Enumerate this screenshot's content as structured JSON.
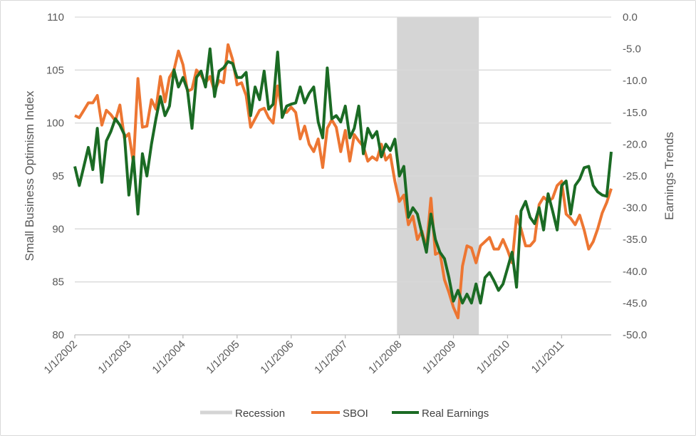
{
  "chart_data": {
    "type": "line",
    "title": "",
    "y_left": {
      "label": "Small Business Optimism Index",
      "range": [
        80,
        110
      ],
      "step": 5,
      "ticks": [
        "80",
        "85",
        "90",
        "95",
        "100",
        "105",
        "110"
      ]
    },
    "y_right": {
      "label": "Earnings Trends",
      "range": [
        -50,
        0
      ],
      "step": 5,
      "ticks": [
        "-50.0",
        "-45.0",
        "-40.0",
        "-35.0",
        "-30.0",
        "-25.0",
        "-20.0",
        "-15.0",
        "-10.0",
        "-5.0",
        "0.0"
      ]
    },
    "x": {
      "start": "2002-01",
      "end": "2011-12",
      "frequency": "monthly",
      "tick_labels": [
        "1/1/2002",
        "1/1/2003",
        "1/1/2004",
        "1/1/2005",
        "1/1/2006",
        "1/1/2007",
        "1/1/2008",
        "1/1/2009",
        "1/1/2010",
        "1/1/2011"
      ]
    },
    "grid": "horizontal",
    "legend": {
      "position": "bottom",
      "entries": [
        "Recession",
        "SBOI",
        "Real Earnings"
      ]
    },
    "recession": {
      "start": "2007-12",
      "end": "2009-06",
      "color": "#d5d5d5"
    },
    "series": [
      {
        "name": "SBOI",
        "axis": "left",
        "color": "#ed7632",
        "values": [
          100.7,
          100.5,
          101.2,
          101.9,
          101.9,
          102.6,
          99.8,
          101.2,
          100.8,
          100.2,
          101.7,
          98.6,
          99.0,
          96.2,
          104.2,
          99.6,
          99.7,
          102.2,
          101.3,
          104.4,
          102.0,
          104.3,
          105.0,
          106.8,
          105.5,
          103.0,
          103.2,
          105.0,
          104.5,
          103.8,
          104.4,
          103.0,
          104.0,
          103.8,
          107.4,
          106.0,
          103.6,
          103.8,
          102.6,
          99.6,
          100.4,
          101.2,
          101.4,
          100.5,
          100.0,
          103.5,
          101.0,
          101.0,
          101.5,
          101.0,
          98.5,
          99.7,
          98.0,
          97.3,
          98.5,
          95.8,
          99.5,
          100.3,
          99.6,
          97.3,
          99.3,
          96.4,
          98.9,
          98.3,
          97.8,
          96.4,
          96.8,
          96.5,
          98.0,
          96.5,
          97.0,
          94.5,
          92.6,
          93.2,
          90.4,
          91.2,
          89.0,
          89.8,
          88.2,
          92.9,
          87.6,
          87.8,
          85.2,
          84.0,
          82.6,
          81.6,
          86.5,
          88.4,
          88.2,
          86.8,
          88.4,
          88.8,
          89.2,
          88.1,
          88.1,
          89.0,
          88.0,
          86.8,
          91.2,
          90.0,
          88.4,
          88.4,
          88.9,
          92.3,
          93.0,
          92.6,
          92.9,
          94.1,
          94.5,
          91.4,
          91.0,
          90.4,
          91.3,
          89.9,
          88.1,
          88.8,
          90.0,
          91.5,
          92.5,
          93.8
        ]
      },
      {
        "name": "Real Earnings",
        "axis": "right",
        "color": "#1b6b24",
        "values": [
          -23.5,
          -26.5,
          -23.5,
          -20.5,
          -24.0,
          -17.5,
          -26.0,
          -19.5,
          -18.0,
          -16.0,
          -17.0,
          -18.5,
          -28.0,
          -22.0,
          -31.0,
          -21.5,
          -25.0,
          -20.0,
          -16.0,
          -12.5,
          -15.5,
          -14.0,
          -8.3,
          -11.0,
          -9.5,
          -11.5,
          -17.5,
          -9.5,
          -8.5,
          -11.0,
          -5.0,
          -12.5,
          -8.5,
          -8.0,
          -7.0,
          -7.3,
          -9.5,
          -9.5,
          -8.7,
          -15.5,
          -11.0,
          -13.0,
          -8.5,
          -14.5,
          -13.7,
          -5.5,
          -15.8,
          -14.0,
          -13.7,
          -13.5,
          -11.0,
          -13.5,
          -12.0,
          -11.0,
          -16.5,
          -19.0,
          -8.0,
          -16.0,
          -15.5,
          -16.5,
          -14.0,
          -19.0,
          -17.5,
          -14.0,
          -21.5,
          -17.5,
          -19.0,
          -18.0,
          -22.0,
          -20.0,
          -21.0,
          -19.2,
          -25.0,
          -23.5,
          -31.5,
          -30.0,
          -31.0,
          -34.0,
          -37.0,
          -31.0,
          -35.0,
          -37.0,
          -38.0,
          -41.0,
          -44.7,
          -43.0,
          -45.0,
          -43.6,
          -45.0,
          -42.0,
          -45.0,
          -41.0,
          -40.2,
          -41.5,
          -43.0,
          -42.0,
          -39.5,
          -37.0,
          -42.5,
          -30.5,
          -29.0,
          -31.5,
          -32.5,
          -30.0,
          -33.5,
          -27.8,
          -30.5,
          -33.5,
          -26.5,
          -25.8,
          -31.0,
          -26.5,
          -25.5,
          -23.7,
          -23.5,
          -26.5,
          -27.5,
          -28.0,
          -28.2,
          -21.2
        ]
      }
    ]
  }
}
